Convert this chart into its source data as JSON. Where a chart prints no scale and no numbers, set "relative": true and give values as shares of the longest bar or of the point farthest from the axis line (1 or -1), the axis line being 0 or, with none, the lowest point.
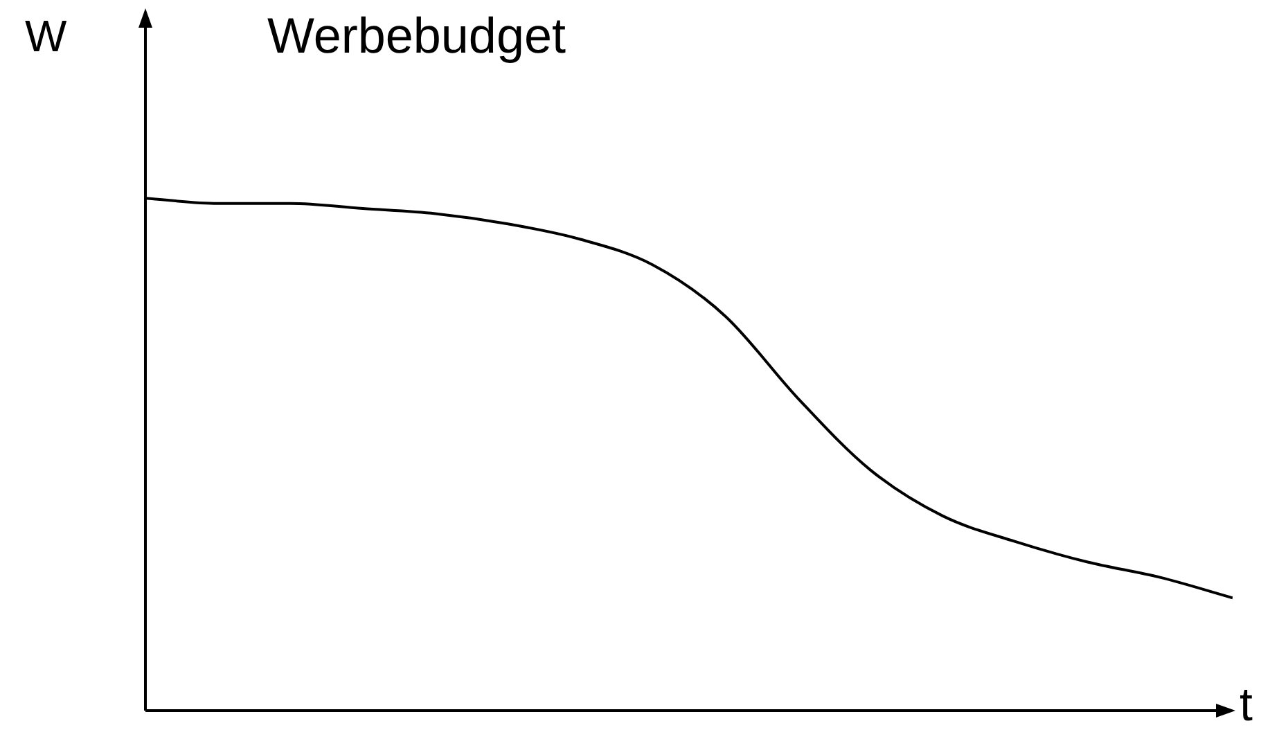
{
  "chart_data": {
    "type": "line",
    "title": "Werbebudget",
    "ylabel": "W",
    "xlabel": "t",
    "relative": true,
    "color": "#000000",
    "marker": "none",
    "line_style": "solid",
    "legend": false,
    "categories": [
      null,
      null,
      null,
      null,
      null,
      null,
      null,
      null,
      null,
      null,
      null,
      null,
      null,
      null,
      null,
      null
    ],
    "values": [
      1.0,
      0.99,
      0.99,
      0.98,
      0.97,
      0.95,
      0.92,
      0.87,
      0.77,
      0.61,
      0.47,
      0.38,
      0.33,
      0.29,
      0.26,
      0.22
    ]
  }
}
